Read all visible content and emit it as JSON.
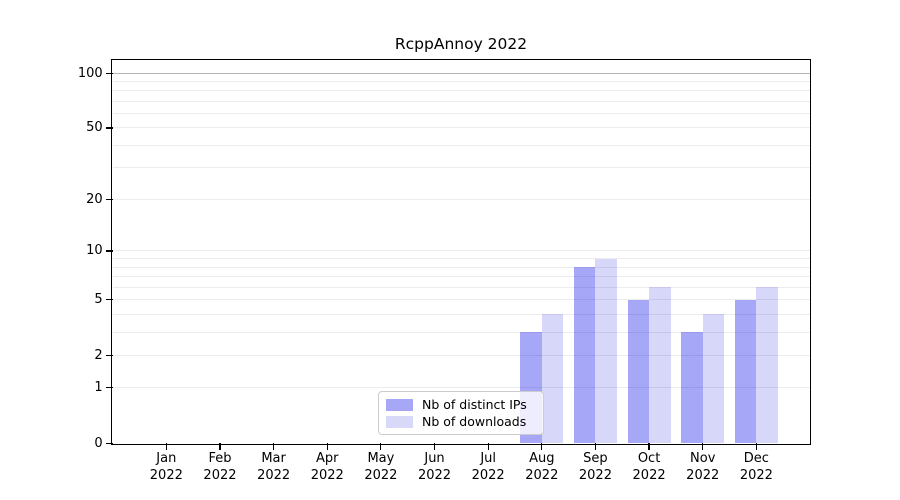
{
  "chart_data": {
    "type": "bar",
    "title": "RcppAnnoy 2022",
    "categories": [
      "Jan",
      "Feb",
      "Mar",
      "Apr",
      "May",
      "Jun",
      "Jul",
      "Aug",
      "Sep",
      "Oct",
      "Nov",
      "Dec"
    ],
    "x_year_label": "2022",
    "series": [
      {
        "name": "Nb of distinct IPs",
        "values": [
          0,
          0,
          0,
          0,
          0,
          0,
          0,
          3,
          8,
          5,
          3,
          5
        ],
        "fill": "rgba(4,4,232,0.35)",
        "legend_color": "#a7a7f7"
      },
      {
        "name": "Nb of downloads",
        "values": [
          0,
          0,
          0,
          0,
          0,
          0,
          0,
          4,
          9,
          6,
          4,
          6
        ],
        "fill": "rgba(5,5,224,0.16)",
        "legend_color": "#d8d8f9"
      }
    ],
    "yscale": "log1p",
    "ylim": [
      0,
      117
    ],
    "y_ticks": [
      0,
      1,
      2,
      5,
      10,
      20,
      50,
      100
    ],
    "y_minor_gridlines": [
      1,
      2,
      3,
      4,
      5,
      6,
      7,
      8,
      9,
      10,
      20,
      30,
      40,
      50,
      60,
      70,
      80,
      90
    ],
    "y_major_gridlines": [
      100
    ],
    "grid_minor_color": "#ececec",
    "grid_major_color": "#b3b3b3",
    "legend_location": "lower center",
    "grid": "on",
    "xlabel": "",
    "ylabel": ""
  }
}
